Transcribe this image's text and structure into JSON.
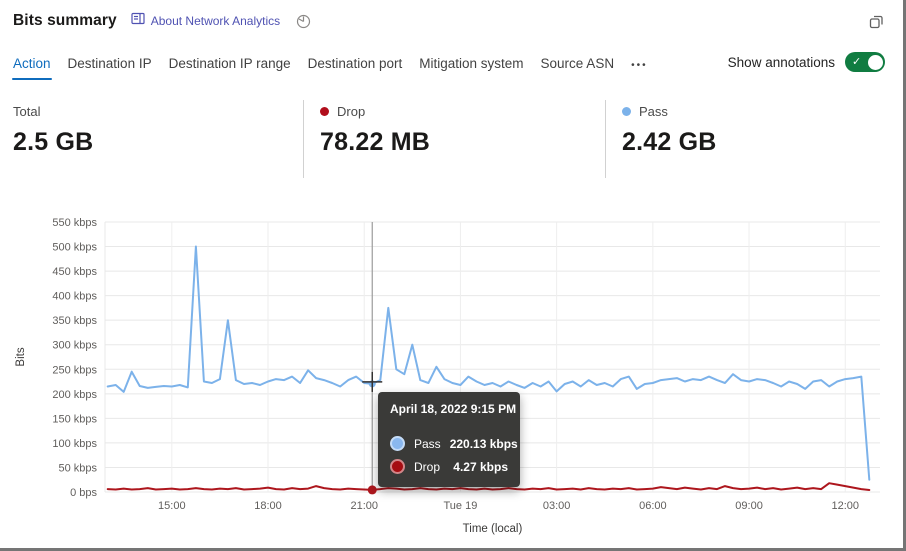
{
  "header": {
    "title": "Bits summary",
    "about_link": "About Network Analytics"
  },
  "tabs": {
    "items": [
      {
        "label": "Action",
        "active": true
      },
      {
        "label": "Destination IP",
        "active": false
      },
      {
        "label": "Destination IP range",
        "active": false
      },
      {
        "label": "Destination port",
        "active": false
      },
      {
        "label": "Mitigation system",
        "active": false
      },
      {
        "label": "Source ASN",
        "active": false
      }
    ],
    "more_label": "•••",
    "annotations_label": "Show annotations",
    "annotations_on": true,
    "toggle_color": "#107c41"
  },
  "stats": [
    {
      "label": "Total",
      "value": "2.5 GB"
    },
    {
      "label": "Drop",
      "value": "78.22 MB",
      "dot_color": "#b10e1c"
    },
    {
      "label": "Pass",
      "value": "2.42 GB",
      "dot_color": "#7cb2ea"
    }
  ],
  "colors": {
    "accent_tab": "#0f6cbd",
    "link": "#4f52b2",
    "pass": "#7cb2ea",
    "drop": "#ad161d",
    "grid": "#e8e8e8",
    "crosshair": "#9b9b9b"
  },
  "chart_data": {
    "type": "line",
    "ylabel": "Bits",
    "xlabel": "Time (local)",
    "units": "kbps",
    "ylim": [
      0,
      550
    ],
    "y_tick_step": 50,
    "y_tick_labels": [
      "0 bps",
      "50 kbps",
      "100 kbps",
      "150 kbps",
      "200 kbps",
      "250 kbps",
      "300 kbps",
      "350 kbps",
      "400 kbps",
      "450 kbps",
      "500 kbps",
      "550 kbps"
    ],
    "x_domain_minutes": 1450,
    "x_ticks": [
      {
        "t": 125,
        "label": "15:00"
      },
      {
        "t": 305,
        "label": "18:00"
      },
      {
        "t": 485,
        "label": "21:00"
      },
      {
        "t": 665,
        "label": "Tue 19"
      },
      {
        "t": 845,
        "label": "03:00"
      },
      {
        "t": 1025,
        "label": "06:00"
      },
      {
        "t": 1205,
        "label": "09:00"
      },
      {
        "t": 1385,
        "label": "12:00"
      }
    ],
    "x_start_min": 5,
    "x_step_min": 15,
    "grid": true,
    "legend_position": "none",
    "series": [
      {
        "name": "Pass",
        "color": "#7cb2ea",
        "values": [
          215,
          218,
          204,
          245,
          216,
          212,
          214,
          216,
          215,
          218,
          213,
          500,
          225,
          222,
          230,
          350,
          228,
          220,
          222,
          218,
          225,
          230,
          228,
          235,
          222,
          248,
          232,
          228,
          222,
          215,
          228,
          235,
          222,
          220.13,
          228,
          375,
          250,
          240,
          300,
          228,
          222,
          255,
          230,
          222,
          218,
          235,
          225,
          218,
          222,
          215,
          225,
          218,
          212,
          222,
          215,
          225,
          205,
          220,
          225,
          215,
          228,
          218,
          222,
          215,
          230,
          235,
          210,
          220,
          222,
          228,
          230,
          232,
          225,
          230,
          228,
          235,
          228,
          222,
          240,
          228,
          225,
          230,
          228,
          222,
          215,
          225,
          220,
          210,
          225,
          228,
          215,
          225,
          230,
          232,
          235,
          25
        ]
      },
      {
        "name": "Drop",
        "color": "#ad161d",
        "values": [
          6,
          5,
          7,
          5,
          6,
          8,
          5,
          6,
          7,
          5,
          6,
          8,
          6,
          5,
          7,
          6,
          8,
          5,
          6,
          7,
          9,
          6,
          5,
          8,
          6,
          7,
          12,
          8,
          6,
          5,
          7,
          6,
          5,
          4.27,
          6,
          8,
          7,
          5,
          6,
          8,
          6,
          5,
          7,
          6,
          8,
          6,
          5,
          7,
          5,
          6,
          8,
          6,
          5,
          7,
          6,
          8,
          5,
          6,
          7,
          5,
          8,
          6,
          5,
          7,
          6,
          8,
          5,
          6,
          7,
          10,
          8,
          6,
          9,
          7,
          5,
          8,
          6,
          12,
          8,
          6,
          7,
          9,
          6,
          8,
          5,
          7,
          9,
          6,
          8,
          6,
          18,
          15,
          12,
          9,
          6,
          4
        ]
      }
    ],
    "crosshair": {
      "t": 500,
      "pass_v": 220.13,
      "drop_v": 4.27
    }
  },
  "tooltip": {
    "title": "April 18, 2022 9:15 PM",
    "rows": [
      {
        "label": "Pass",
        "value": "220.13 kbps",
        "color": "#8ab8ef"
      },
      {
        "label": "Drop",
        "value": "4.27 kbps",
        "color": "#a50d12"
      }
    ]
  }
}
